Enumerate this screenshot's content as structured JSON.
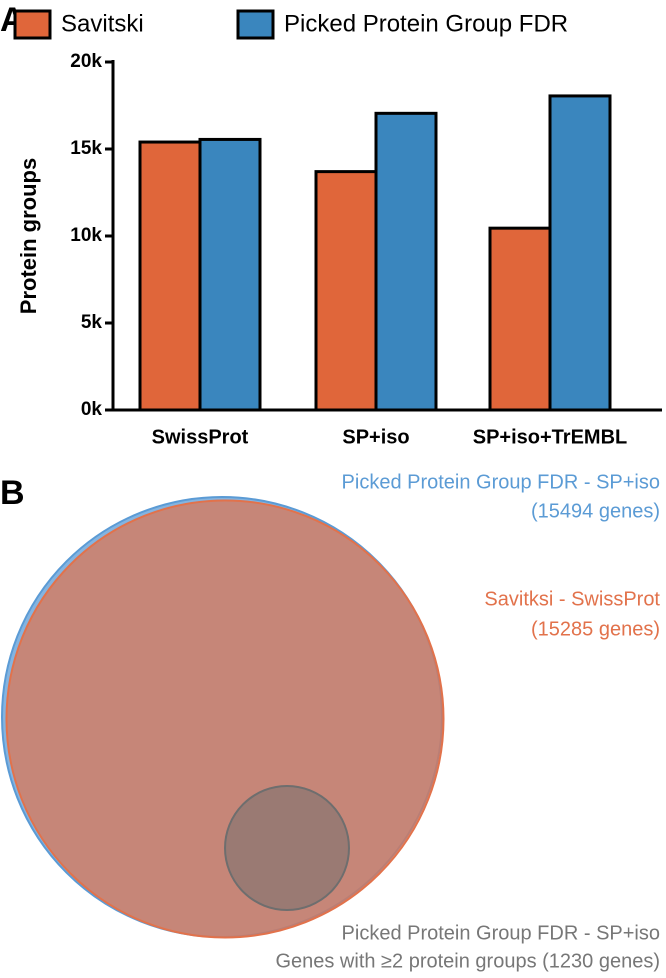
{
  "chart_data": [
    {
      "type": "bar",
      "panel": "A",
      "y_label": "Protein groups",
      "categories": [
        "SwissProt",
        "SP+iso",
        "SP+iso+TrEMBL"
      ],
      "series": [
        {
          "name": "Savitski",
          "color": "#e0663a",
          "values": [
            15400,
            13700,
            10450
          ]
        },
        {
          "name": "Picked Protein Group FDR",
          "color": "#3a86be",
          "values": [
            15550,
            17050,
            18050
          ]
        }
      ],
      "ylim": [
        0,
        20000
      ],
      "yticks": [
        {
          "value": 0,
          "label": "0k"
        },
        {
          "value": 5000,
          "label": "5k"
        },
        {
          "value": 10000,
          "label": "10k"
        },
        {
          "value": 15000,
          "label": "15k"
        },
        {
          "value": 20000,
          "label": "20k"
        }
      ]
    },
    {
      "type": "venn",
      "panel": "B",
      "sets": [
        {
          "name": "Picked Protein Group FDR - SP+iso",
          "detail": "(15494 genes)",
          "value": 15494,
          "color": "#5b9bd5"
        },
        {
          "name": "Savitksi - SwissProt",
          "detail": "(15285 genes)",
          "value": 15285,
          "color": "#e2724b"
        },
        {
          "name": "Picked Protein Group FDR - SP+iso",
          "detail": "Genes with ≥2 protein groups (1230 genes)",
          "value": 1230,
          "color": "#6e6e6e"
        }
      ]
    }
  ]
}
